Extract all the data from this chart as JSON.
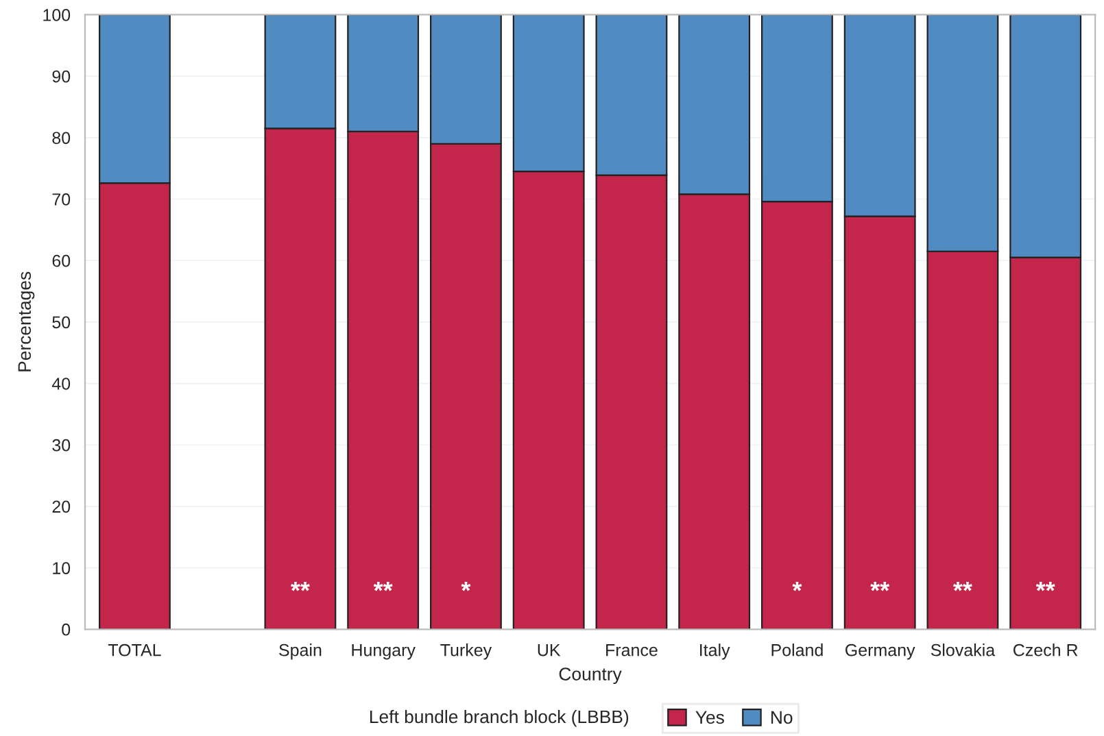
{
  "chart_data": {
    "type": "bar",
    "stacked": true,
    "categories": [
      "TOTAL",
      null,
      "Spain",
      "Hungary",
      "Turkey",
      "UK",
      "France",
      "Italy",
      "Poland",
      "Germany",
      "Slovakia",
      "Czech R"
    ],
    "series": [
      {
        "name": "Yes",
        "color": "#c3264a",
        "values": [
          72.6,
          null,
          81.5,
          81.0,
          79.0,
          74.5,
          73.9,
          70.8,
          69.6,
          67.2,
          61.5,
          60.5
        ],
        "value_labels": [
          null,
          null,
          "**",
          "**",
          "*",
          null,
          null,
          null,
          "*",
          "**",
          "**",
          "**"
        ]
      },
      {
        "name": "No",
        "color": "#508bc2",
        "values": [
          27.4,
          null,
          18.5,
          19.0,
          21.0,
          25.5,
          26.1,
          29.2,
          30.4,
          32.8,
          38.5,
          39.5
        ]
      }
    ],
    "xlabel": "Country",
    "ylabel": "Percentages",
    "legend_title": "Left bundle branch block (LBBB)",
    "ylim": [
      0,
      100
    ],
    "yticks": [
      0,
      10,
      20,
      30,
      40,
      50,
      60,
      70,
      80,
      90,
      100
    ],
    "grid": "y",
    "legend": "bottom"
  }
}
